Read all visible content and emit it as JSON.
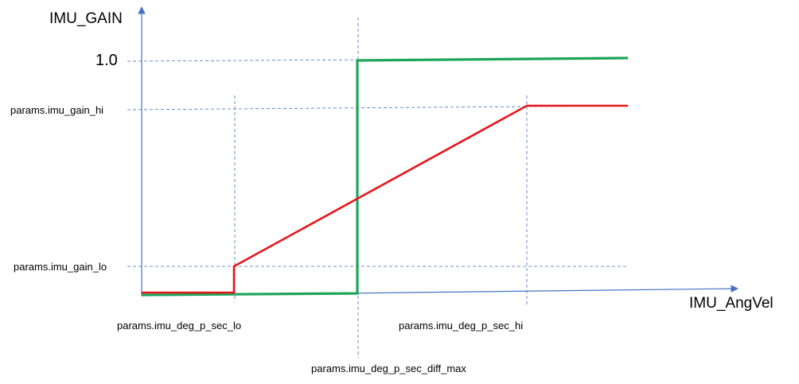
{
  "y_axis_title": "IMU_GAIN",
  "x_axis_title": "IMU_AngVel",
  "y_ticks": {
    "one": "1.0",
    "gain_hi": "params.imu_gain_hi",
    "gain_lo": "params.imu_gain_lo"
  },
  "x_ticks": {
    "deg_lo": "params.imu_deg_p_sec_lo",
    "deg_hi": "params.imu_deg_p_sec_hi",
    "diff_max": "params.imu_deg_p_sec_diff_max"
  },
  "colors": {
    "axis": "#4472c4",
    "guide": "#4472c4",
    "red_curve": "#e8141b",
    "green_curve": "#1ea55a"
  }
}
